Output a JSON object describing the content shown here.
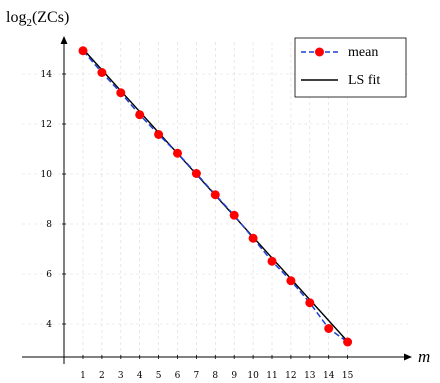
{
  "chart_data": {
    "type": "line",
    "xlabel": "m",
    "ylabel": "log2(ZCs)",
    "ylabel_main": "log",
    "ylabel_sub": "2",
    "ylabel_rest": "(ZCs)",
    "x": [
      1,
      2,
      3,
      4,
      5,
      6,
      7,
      8,
      9,
      10,
      11,
      12,
      13,
      14,
      15
    ],
    "xticks": [
      1,
      2,
      3,
      4,
      5,
      6,
      7,
      8,
      9,
      10,
      11,
      12,
      13,
      14,
      15
    ],
    "yticks": [
      4,
      6,
      8,
      10,
      12,
      14
    ],
    "xlim": [
      0.5,
      15.7
    ],
    "ylim": [
      3.1,
      15.5
    ],
    "grid": true,
    "legend_position": "top-right",
    "series": [
      {
        "name": "mean",
        "style": "dashed-with-markers",
        "color": "#1f3fd6",
        "marker_color": "#ff0000",
        "values": [
          14.93,
          14.06,
          13.25,
          12.37,
          11.58,
          10.83,
          10.02,
          9.17,
          8.35,
          7.43,
          6.51,
          5.73,
          4.85,
          3.82,
          3.28
        ]
      },
      {
        "name": "LS fit",
        "style": "solid",
        "color": "#000000",
        "line": [
          [
            1,
            15.0
          ],
          [
            15,
            3.3
          ]
        ]
      }
    ]
  }
}
